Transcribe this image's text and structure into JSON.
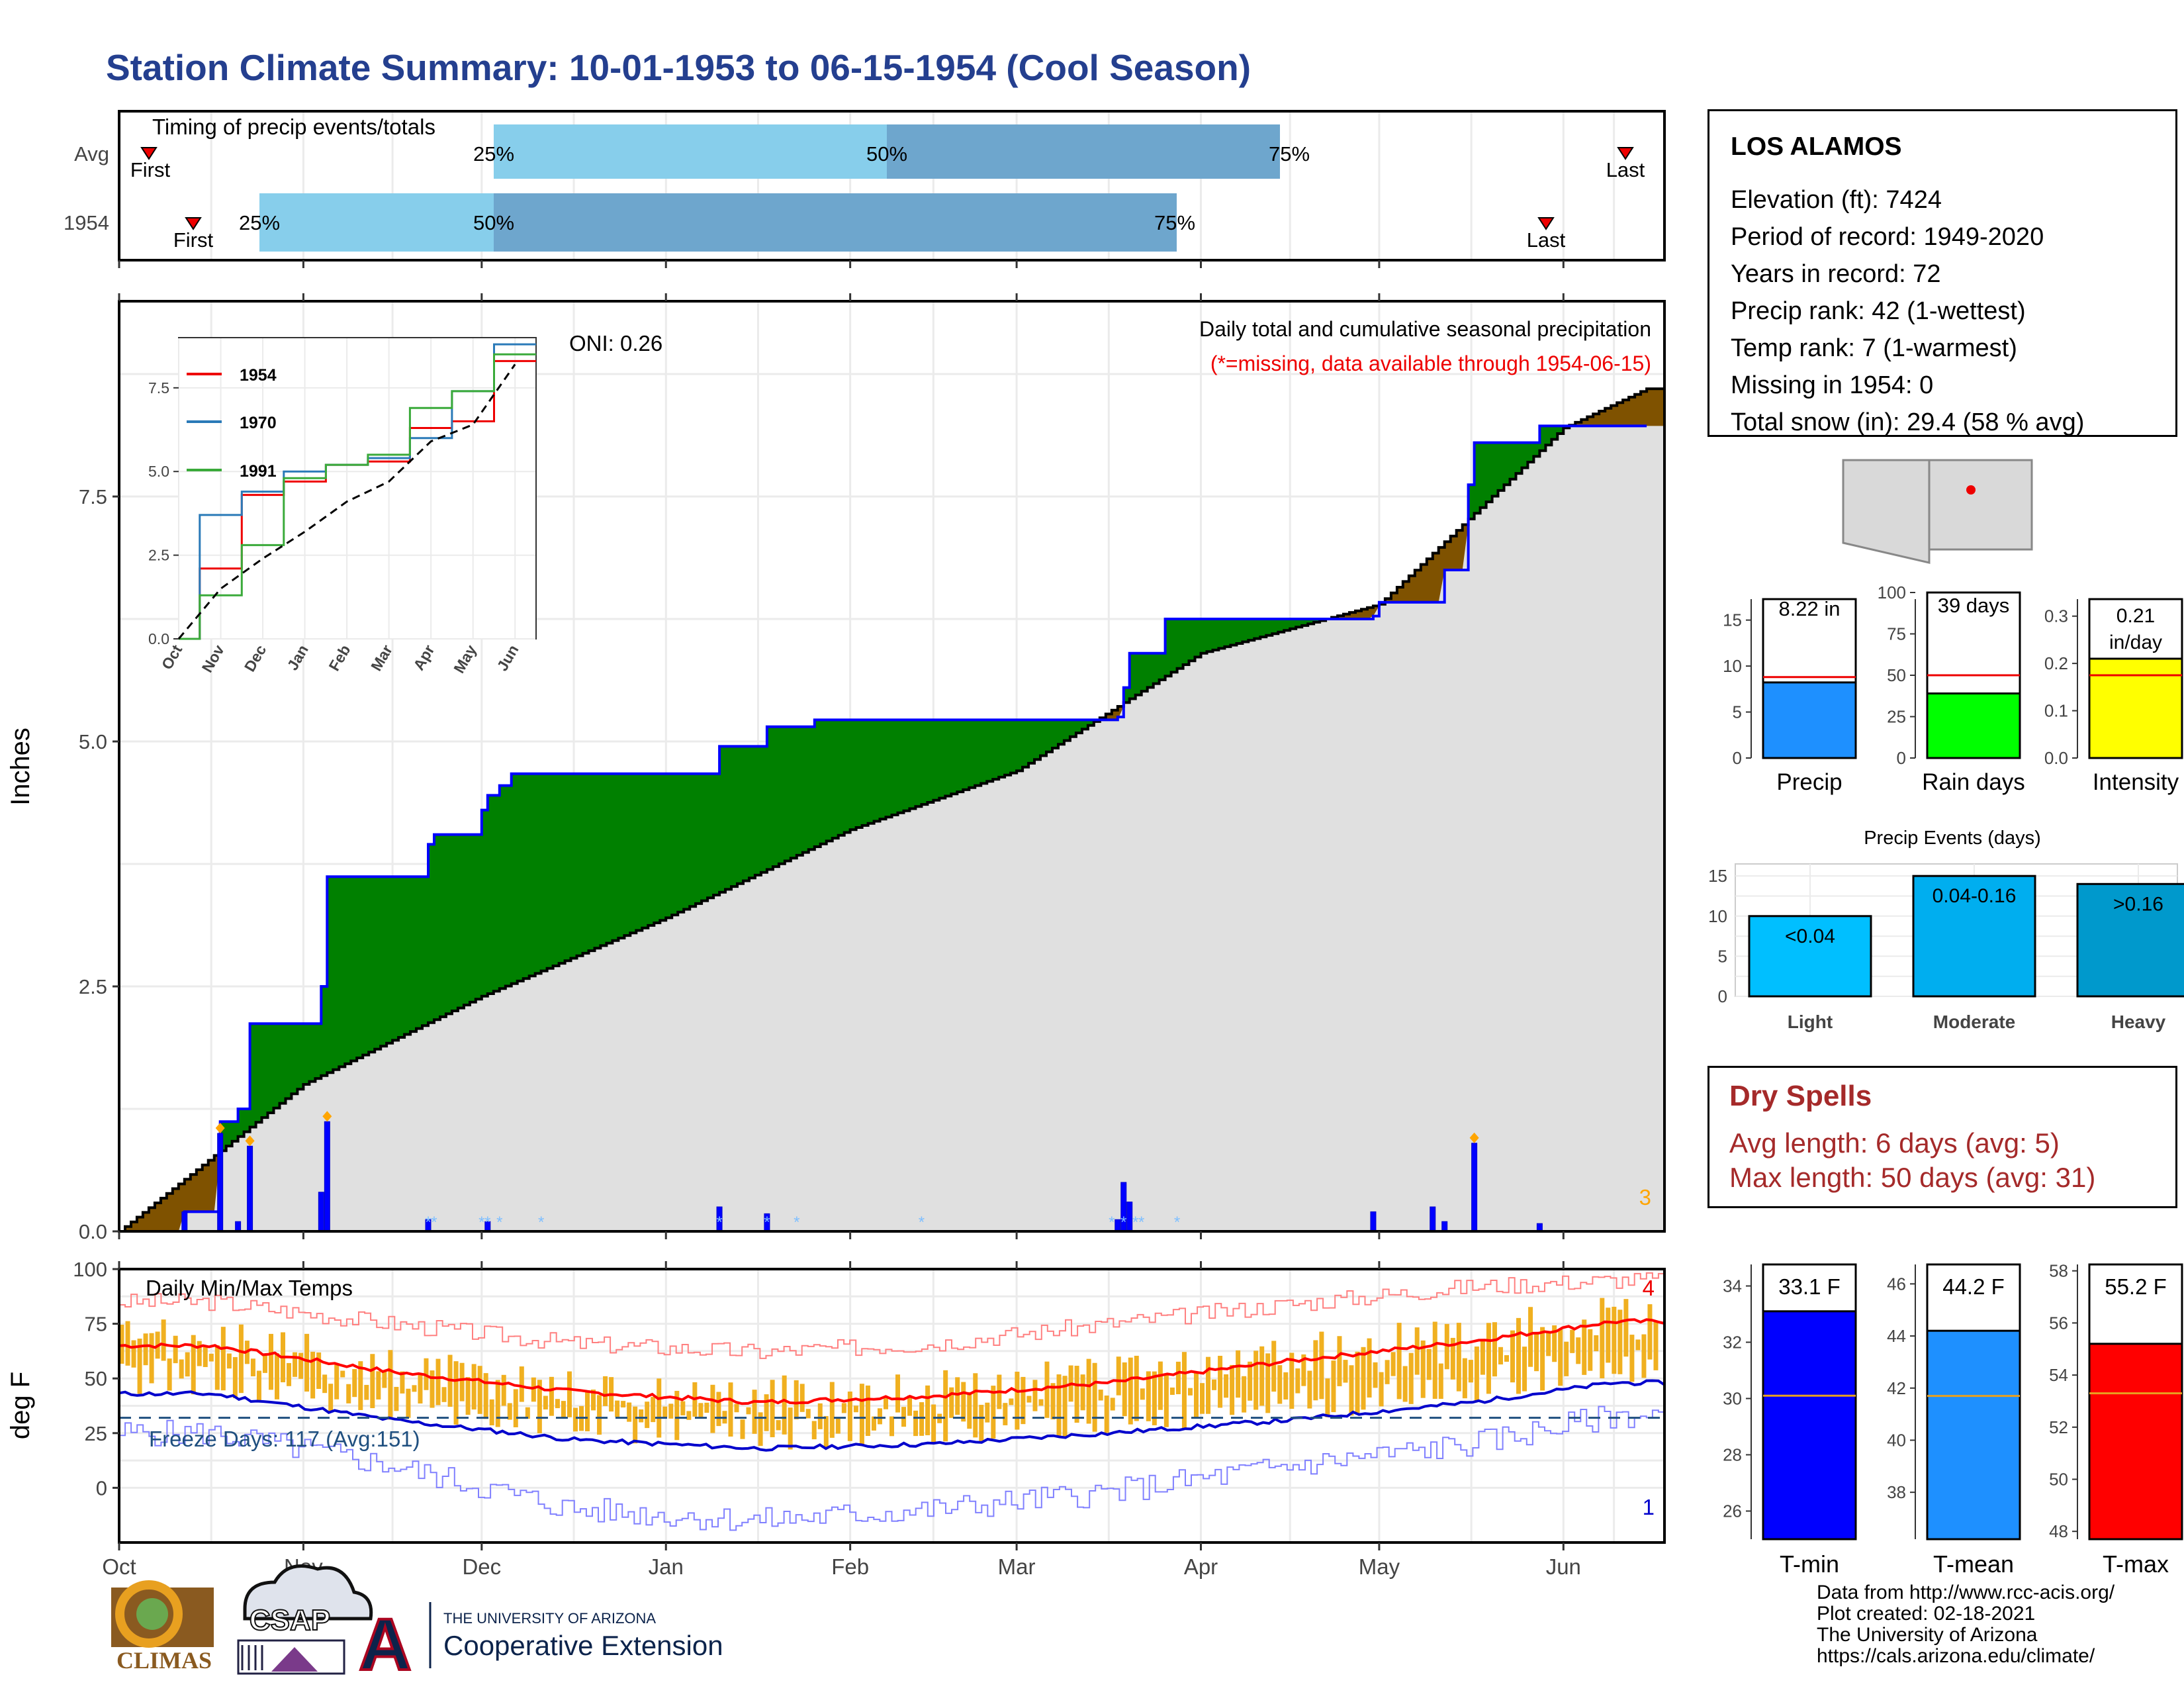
{
  "title": "Station Climate Summary: 10-01-1953 to 06-15-1954 (Cool Season)",
  "timing": {
    "label": "Timing of precip events/totals",
    "rows": [
      "Avg",
      "1954"
    ],
    "first_label": "First",
    "last_label": "Last",
    "pct_labels": [
      "25%",
      "50%",
      "75%"
    ]
  },
  "station": {
    "name": "LOS ALAMOS",
    "elevation": "Elevation (ft): 7424",
    "period": "Period of record: 1949-2020",
    "years": "Years in record: 72",
    "precip_rank": "Precip rank: 42 (1-wettest)",
    "temp_rank": "Temp rank: 7 (1-warmest)",
    "missing": "Missing in 1954: 0",
    "snow": "Total snow (in): 29.4 (58 % avg)"
  },
  "precip_panel": {
    "ylabel": "Inches",
    "oni": "ONI: 0.26",
    "caption": "Daily total and cumulative seasonal precipitation",
    "missing_note": "(*=missing, data available through 1954-06-15)",
    "corner_count": "3",
    "y_ticks": [
      "0.0",
      "2.5",
      "5.0",
      "7.5"
    ]
  },
  "inset": {
    "legend": [
      "1954",
      "1970",
      "1991"
    ],
    "y_ticks": [
      "0.0",
      "2.5",
      "5.0",
      "7.5"
    ],
    "x_ticks": [
      "Oct",
      "Nov",
      "Dec",
      "Jan",
      "Feb",
      "Mar",
      "Apr",
      "May",
      "Jun"
    ]
  },
  "temp_panel": {
    "ylabel": "deg F",
    "label": "Daily Min/Max Temps",
    "freeze": "Freeze Days: 117 (Avg:151)",
    "corner_top": "4",
    "corner_bottom": "1",
    "y_ticks": [
      "0",
      "25",
      "50",
      "75",
      "100"
    ]
  },
  "months": [
    "Oct",
    "Nov",
    "Dec",
    "Jan",
    "Feb",
    "Mar",
    "Apr",
    "May",
    "Jun"
  ],
  "mini_bars": {
    "precip": {
      "label": "Precip",
      "value_text": "8.22 in",
      "ticks": [
        "0",
        "5",
        "10",
        "15"
      ]
    },
    "raindays": {
      "label": "Rain days",
      "value_text": "39 days",
      "ticks": [
        "0",
        "25",
        "50",
        "75",
        "100"
      ]
    },
    "intensity": {
      "label": "Intensity",
      "value_text_1": "0.21",
      "value_text_2": "in/day",
      "ticks": [
        "0.0",
        "0.1",
        "0.2",
        "0.3"
      ]
    }
  },
  "events": {
    "title": "Precip Events (days)",
    "categories": [
      "Light",
      "Moderate",
      "Heavy"
    ],
    "labels": [
      "<0.04",
      "0.04-0.16",
      ">0.16"
    ],
    "ticks": [
      "0",
      "5",
      "10",
      "15"
    ]
  },
  "dry_spells": {
    "title": "Dry Spells",
    "avg": "Avg length: 6 days (avg: 5)",
    "max": "Max length: 50 days (avg: 31)"
  },
  "temp_bars": {
    "tmin": {
      "label": "T-min",
      "value_text": "33.1 F",
      "ticks": [
        "26",
        "28",
        "30",
        "32",
        "34"
      ]
    },
    "tmean": {
      "label": "T-mean",
      "value_text": "44.2 F",
      "ticks": [
        "38",
        "40",
        "42",
        "44",
        "46"
      ]
    },
    "tmax": {
      "label": "T-max",
      "value_text": "55.2 F",
      "ticks": [
        "48",
        "50",
        "52",
        "54",
        "56",
        "58"
      ]
    }
  },
  "credits": {
    "l1": "Data from http://www.rcc-acis.org/",
    "l2": "Plot created: 02-18-2021",
    "l3": "The University of Arizona",
    "l4": "https://cals.arizona.edu/climate/"
  },
  "logos": {
    "climas": "CLIMAS",
    "csap": "CSAP",
    "ua_small": "THE UNIVERSITY OF ARIZONA",
    "ua_big": "Cooperative Extension",
    "ua_letter": "A"
  },
  "colors": {
    "title": "#243f8f",
    "above_avg": "#008000",
    "below_avg": "#7f5200",
    "cum_avg_fill": "#e0e0e0",
    "daily_precip": "#0000ff",
    "tmax_line": "#ff0000",
    "tmin_line": "#0000cc",
    "temp_bars": "#f0b020",
    "timing_light": "#87ceeb",
    "timing_dark": "#6ea6cd"
  },
  "chart_data": [
    {
      "type": "bar",
      "title": "Timing of precip events/totals",
      "rows": [
        "Avg",
        "1954"
      ],
      "series": [
        {
          "name": "Avg",
          "first": "1953-10-08",
          "p25": "1953-12-01",
          "p50": "1954-02-01",
          "p75": "1954-04-14",
          "last": "1954-06-11"
        },
        {
          "name": "1954",
          "first": "1953-10-15",
          "p25": "1953-10-23",
          "p50": "1953-12-01",
          "p75": "1954-03-22",
          "last": "1954-05-29"
        }
      ]
    },
    {
      "type": "area",
      "title": "Daily total and cumulative seasonal precipitation",
      "ylabel": "Inches",
      "ylim": [
        0,
        9.5
      ],
      "series": [
        {
          "name": "observed cumulative",
          "x": [
            "1953-10-01",
            "1953-10-12",
            "1953-10-18",
            "1953-10-21",
            "1953-10-23",
            "1953-11-04",
            "1953-11-05",
            "1953-11-22",
            "1953-11-23",
            "1953-11-25",
            "1953-12-01",
            "1953-12-02",
            "1953-12-04",
            "1953-12-06",
            "1954-01-10",
            "1954-01-18",
            "1954-01-26",
            "1954-03-10",
            "1954-03-18",
            "1954-03-19",
            "1954-03-20",
            "1954-03-26",
            "1954-04-30",
            "1954-05-01",
            "1954-05-12",
            "1954-05-16",
            "1954-05-17",
            "1954-05-28",
            "1954-06-15"
          ],
          "y": [
            0.0,
            0.2,
            1.12,
            1.25,
            2.12,
            2.5,
            3.62,
            3.95,
            4.05,
            4.05,
            4.3,
            4.45,
            4.55,
            4.67,
            4.95,
            5.15,
            5.22,
            5.22,
            5.25,
            5.55,
            5.9,
            6.25,
            6.28,
            6.42,
            6.75,
            7.62,
            8.05,
            8.22,
            8.22
          ]
        },
        {
          "name": "average cumulative",
          "x": [
            "1953-10-01",
            "1953-11-01",
            "1953-12-01",
            "1954-01-01",
            "1954-02-01",
            "1954-03-01",
            "1954-04-01",
            "1954-05-01",
            "1954-06-01",
            "1954-06-15"
          ],
          "y": [
            0.0,
            1.5,
            2.4,
            3.2,
            4.1,
            4.7,
            5.9,
            6.4,
            8.2,
            8.6
          ]
        },
        {
          "name": "daily precipitation",
          "x": [
            "1953-10-12",
            "1953-10-18",
            "1953-10-21",
            "1953-10-23",
            "1953-11-04",
            "1953-11-05",
            "1953-11-22",
            "1953-12-02",
            "1954-01-10",
            "1954-01-18",
            "1954-03-18",
            "1954-03-19",
            "1954-03-20",
            "1954-04-30",
            "1954-05-10",
            "1954-05-12",
            "1954-05-17",
            "1954-05-28"
          ],
          "y": [
            0.2,
            1.0,
            0.1,
            0.87,
            0.4,
            1.12,
            0.12,
            0.1,
            0.25,
            0.18,
            0.12,
            0.5,
            0.3,
            0.2,
            0.25,
            0.1,
            0.9,
            0.08
          ]
        }
      ]
    },
    {
      "type": "line",
      "title": "",
      "ylim": [
        0,
        9
      ],
      "categories": [
        "Oct",
        "Nov",
        "Dec",
        "Jan",
        "Feb",
        "Mar",
        "Apr",
        "May",
        "Jun"
      ],
      "series": [
        {
          "name": "1954",
          "values": [
            0.0,
            2.1,
            4.3,
            4.7,
            5.2,
            5.3,
            6.3,
            6.5,
            8.3
          ]
        },
        {
          "name": "1970",
          "values": [
            0.0,
            3.7,
            4.4,
            5.0,
            5.2,
            5.4,
            6.0,
            7.4,
            8.8
          ]
        },
        {
          "name": "1991",
          "values": [
            0.0,
            1.3,
            2.8,
            4.8,
            5.2,
            5.5,
            6.9,
            7.4,
            8.5
          ]
        },
        {
          "name": "average",
          "values": [
            0.0,
            1.5,
            2.4,
            3.2,
            4.1,
            4.7,
            5.9,
            6.4,
            8.2
          ]
        }
      ]
    },
    {
      "type": "line",
      "title": "Daily Min/Max Temps",
      "ylabel": "deg F",
      "ylim": [
        -20,
        100
      ],
      "categories": [
        "Oct",
        "Nov",
        "Dec",
        "Jan",
        "Feb",
        "Mar",
        "Apr",
        "May",
        "Jun"
      ],
      "series": [
        {
          "name": "avg max",
          "values": [
            65,
            53,
            44,
            39,
            42,
            48,
            58,
            67,
            76
          ]
        },
        {
          "name": "avg min",
          "values": [
            43,
            31,
            22,
            18,
            20,
            25,
            31,
            39,
            48
          ]
        },
        {
          "name": "record high",
          "values": [
            85,
            75,
            66,
            62,
            66,
            75,
            84,
            92,
            95
          ]
        },
        {
          "name": "record low",
          "values": [
            25,
            10,
            -10,
            -15,
            -10,
            -2,
            10,
            20,
            33
          ]
        }
      ],
      "freeze_line": 32
    },
    {
      "type": "bar",
      "categories": [
        "Precip",
        "Rain days",
        "Intensity"
      ],
      "values": [
        8.22,
        39,
        0.21
      ],
      "averages": [
        8.8,
        50,
        0.175
      ]
    },
    {
      "type": "bar",
      "title": "Precip Events (days)",
      "categories": [
        "Light",
        "Moderate",
        "Heavy"
      ],
      "values": [
        10,
        15,
        14
      ],
      "ylim": [
        0,
        16
      ]
    },
    {
      "type": "bar",
      "categories": [
        "T-min",
        "T-mean",
        "T-max"
      ],
      "values": [
        33.1,
        44.2,
        55.2
      ],
      "averages": [
        30.1,
        41.7,
        53.3
      ]
    }
  ]
}
